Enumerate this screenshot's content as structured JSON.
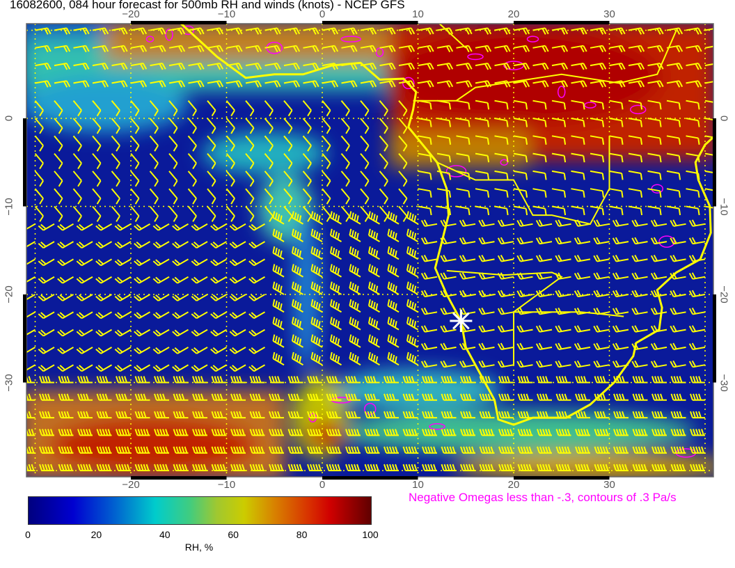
{
  "title": "16082600, 084 hour forecast for 500mb RH and winds (knots) - NCEP GFS",
  "axes": {
    "lon_ticks": [
      "−20",
      "−10",
      "0",
      "10",
      "20",
      "30"
    ],
    "lon_values": [
      -20,
      -10,
      0,
      10,
      20,
      30
    ],
    "lat_ticks": [
      "0",
      "−10",
      "−20",
      "−30"
    ],
    "lat_values": [
      0,
      -10,
      -20,
      -30
    ],
    "lon_range": [
      -31,
      41
    ],
    "lat_range": [
      11,
      -40.5
    ]
  },
  "colorbar": {
    "ticks": [
      "0",
      "20",
      "40",
      "60",
      "80",
      "100"
    ],
    "label": "RH, %",
    "range": [
      0,
      100
    ]
  },
  "note": "Negative Omegas less than -.3, contours of .3 Pa/s",
  "colors": {
    "coastline": "#ffff00",
    "wind_barbs": "#ffff00",
    "omega_contours": "#ff00ff",
    "marker": "#ffffff",
    "low_rh": "#00008b",
    "high_rh": "#c00000"
  },
  "marker": {
    "type": "star",
    "lon": 14.5,
    "lat": -23
  }
}
